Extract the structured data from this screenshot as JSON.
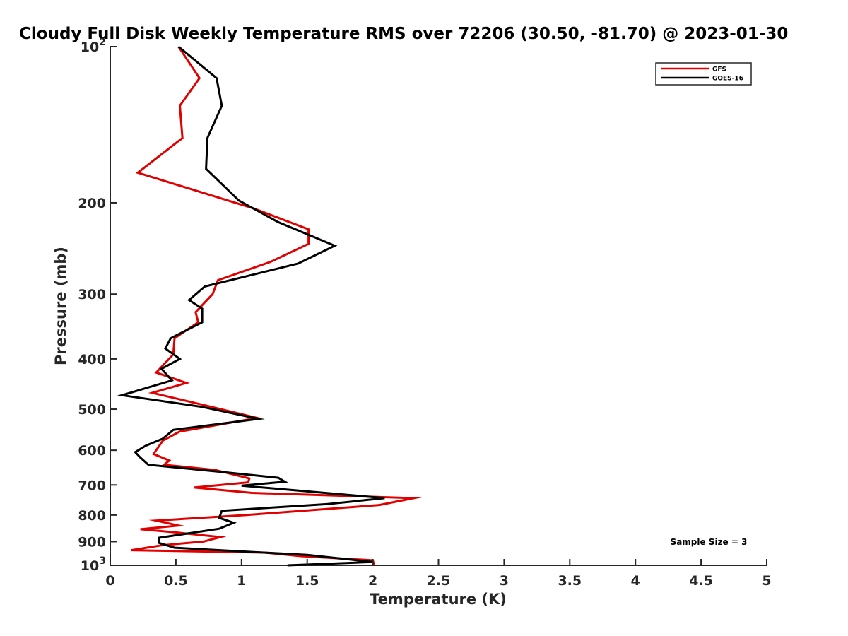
{
  "chart_data": {
    "type": "line",
    "title": "Cloudy Full Disk Weekly Temperature RMS over 72206 (30.50, -81.70) @ 2023-01-30",
    "xlabel": "Temperature (K)",
    "ylabel": "Pressure (mb)",
    "xlim": [
      0,
      5
    ],
    "ylim": [
      100,
      1000
    ],
    "y_scale": "log",
    "y_reversed": true,
    "grid": false,
    "legend_position": "top-right",
    "x_ticks": [
      "0",
      "0.5",
      "1",
      "1.5",
      "2",
      "2.5",
      "3",
      "3.5",
      "4",
      "4.5",
      "5"
    ],
    "x_tick_values": [
      0,
      0.5,
      1,
      1.5,
      2,
      2.5,
      3,
      3.5,
      4,
      4.5,
      5
    ],
    "y_ticks": [
      {
        "value": 100,
        "label": "10",
        "sup": "2"
      },
      {
        "value": 200,
        "label": "200",
        "sup": ""
      },
      {
        "value": 300,
        "label": "300",
        "sup": ""
      },
      {
        "value": 400,
        "label": "400",
        "sup": ""
      },
      {
        "value": 500,
        "label": "500",
        "sup": ""
      },
      {
        "value": 600,
        "label": "600",
        "sup": ""
      },
      {
        "value": 700,
        "label": "700",
        "sup": ""
      },
      {
        "value": 800,
        "label": "800",
        "sup": ""
      },
      {
        "value": 900,
        "label": "900",
        "sup": ""
      },
      {
        "value": 1000,
        "label": "10",
        "sup": "3"
      }
    ],
    "annotation": "Sample Size = 3",
    "series": [
      {
        "name": "GFS",
        "color": "#e00000",
        "points": [
          [
            0.52,
            100
          ],
          [
            0.68,
            115
          ],
          [
            0.53,
            130
          ],
          [
            0.55,
            150
          ],
          [
            0.21,
            175
          ],
          [
            1.09,
            205
          ],
          [
            1.51,
            225
          ],
          [
            1.51,
            240
          ],
          [
            1.22,
            260
          ],
          [
            0.82,
            282
          ],
          [
            0.78,
            300
          ],
          [
            0.65,
            325
          ],
          [
            0.67,
            340
          ],
          [
            0.49,
            365
          ],
          [
            0.48,
            392
          ],
          [
            0.35,
            425
          ],
          [
            0.58,
            445
          ],
          [
            0.32,
            465
          ],
          [
            0.73,
            492
          ],
          [
            1.12,
            520
          ],
          [
            0.53,
            552
          ],
          [
            0.4,
            575
          ],
          [
            0.37,
            590
          ],
          [
            0.33,
            610
          ],
          [
            0.45,
            628
          ],
          [
            0.41,
            640
          ],
          [
            0.8,
            655
          ],
          [
            1.06,
            680
          ],
          [
            1.05,
            692
          ],
          [
            0.64,
            708
          ],
          [
            1.08,
            725
          ],
          [
            2.31,
            742
          ],
          [
            2.05,
            765
          ],
          [
            1.03,
            800
          ],
          [
            0.35,
            820
          ],
          [
            0.52,
            838
          ],
          [
            0.23,
            852
          ],
          [
            0.52,
            865
          ],
          [
            0.84,
            882
          ],
          [
            0.71,
            900
          ],
          [
            0.39,
            915
          ],
          [
            0.16,
            935
          ],
          [
            1.18,
            945
          ],
          [
            1.45,
            960
          ],
          [
            2.0,
            978
          ],
          [
            2.01,
            1000
          ]
        ]
      },
      {
        "name": "GOES-16",
        "color": "#000000",
        "points": [
          [
            0.52,
            100
          ],
          [
            0.81,
            115
          ],
          [
            0.85,
            130
          ],
          [
            0.74,
            150
          ],
          [
            0.73,
            172
          ],
          [
            0.98,
            198
          ],
          [
            1.28,
            218
          ],
          [
            1.71,
            242
          ],
          [
            1.43,
            262
          ],
          [
            0.72,
            290
          ],
          [
            0.6,
            308
          ],
          [
            0.7,
            320
          ],
          [
            0.7,
            340
          ],
          [
            0.46,
            365
          ],
          [
            0.42,
            382
          ],
          [
            0.53,
            400
          ],
          [
            0.39,
            418
          ],
          [
            0.47,
            440
          ],
          [
            0.09,
            470
          ],
          [
            0.7,
            495
          ],
          [
            1.13,
            522
          ],
          [
            0.48,
            548
          ],
          [
            0.4,
            570
          ],
          [
            0.27,
            588
          ],
          [
            0.19,
            605
          ],
          [
            0.23,
            620
          ],
          [
            0.29,
            640
          ],
          [
            0.83,
            660
          ],
          [
            1.28,
            678
          ],
          [
            1.33,
            690
          ],
          [
            1.0,
            702
          ],
          [
            2.09,
            742
          ],
          [
            1.65,
            762
          ],
          [
            0.85,
            785
          ],
          [
            0.83,
            810
          ],
          [
            0.94,
            828
          ],
          [
            0.83,
            850
          ],
          [
            0.37,
            885
          ],
          [
            0.37,
            905
          ],
          [
            0.49,
            925
          ],
          [
            0.86,
            936
          ],
          [
            1.5,
            955
          ],
          [
            2.0,
            985
          ],
          [
            1.35,
            1000
          ]
        ]
      }
    ]
  }
}
